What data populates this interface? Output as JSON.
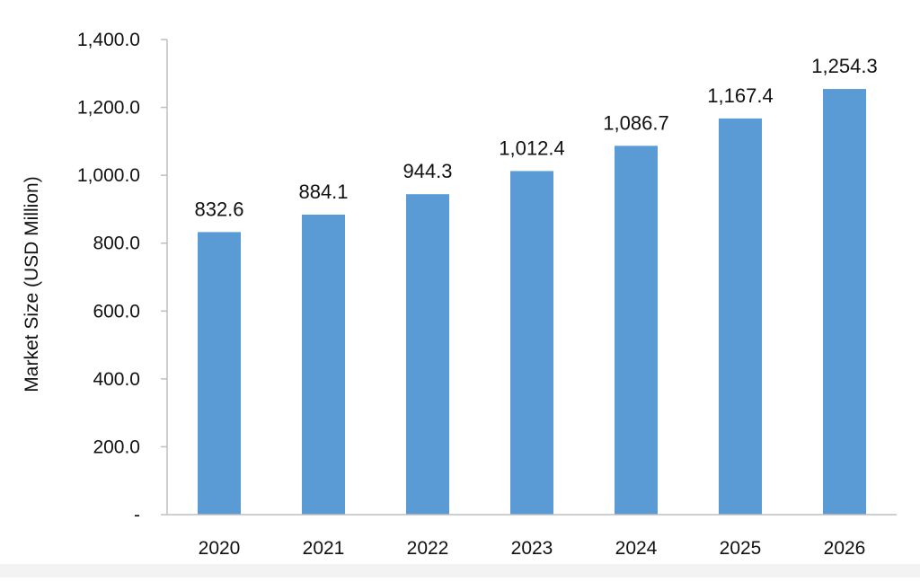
{
  "chart_data": {
    "type": "bar",
    "categories": [
      "2020",
      "2021",
      "2022",
      "2023",
      "2024",
      "2025",
      "2026"
    ],
    "values": [
      832.6,
      884.1,
      944.3,
      1012.4,
      1086.7,
      1167.4,
      1254.3
    ],
    "data_labels": [
      "832.6",
      "884.1",
      "944.3",
      "1,012.4",
      "1,086.7",
      "1,167.4",
      "1,254.3"
    ],
    "title": "",
    "xlabel": "",
    "ylabel": "Market Size (USD Million)",
    "ylim": [
      0,
      1400
    ],
    "y_ticks": [
      0,
      200,
      400,
      600,
      800,
      1000,
      1200,
      1400
    ],
    "y_tick_labels": [
      "-",
      "200.0",
      "400.0",
      "600.0",
      "800.0",
      "1,000.0",
      "1,200.0",
      "1,400.0"
    ],
    "grid": false,
    "legend": "none",
    "bar_color": "#5b9bd5"
  }
}
